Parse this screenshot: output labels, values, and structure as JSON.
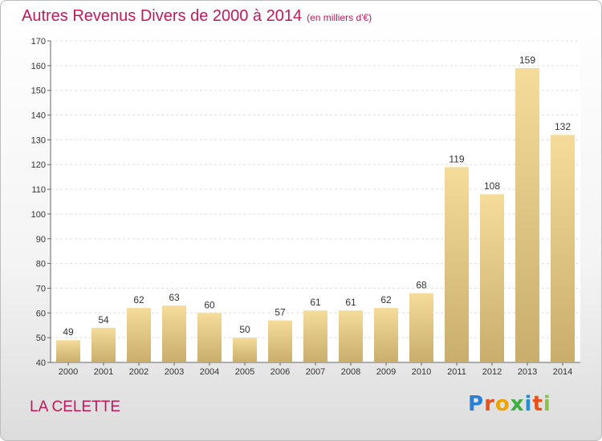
{
  "title": "Autres Revenus Divers de 2000 à 2014",
  "title_unit": "(en milliers d'€)",
  "place_name": "LA CELETTE",
  "logo": {
    "text": "Proxiti",
    "letter_colors": [
      "#2a7fd4",
      "#e8501a",
      "#f0a400",
      "#3cae3c",
      "#1e90d6",
      "#e8501a",
      "#8bc34a"
    ]
  },
  "colors": {
    "title": "#c2185b",
    "bar_light": "#f5dc9a",
    "bar_dark": "#c8ad6c",
    "grid": "#dddddd"
  },
  "chart_data": {
    "type": "bar",
    "categories": [
      "2000",
      "2001",
      "2002",
      "2003",
      "2004",
      "2005",
      "2006",
      "2007",
      "2008",
      "2009",
      "2010",
      "2011",
      "2012",
      "2013",
      "2014"
    ],
    "values": [
      49,
      54,
      62,
      63,
      60,
      50,
      57,
      61,
      61,
      62,
      68,
      119,
      108,
      159,
      132
    ],
    "title": "Autres Revenus Divers de 2000 à 2014",
    "xlabel": "",
    "ylabel": "",
    "ylim": [
      40,
      170
    ],
    "yticks": [
      40,
      50,
      60,
      70,
      80,
      90,
      100,
      110,
      120,
      130,
      140,
      150,
      160,
      170
    ],
    "grid": true,
    "legend": "none"
  }
}
